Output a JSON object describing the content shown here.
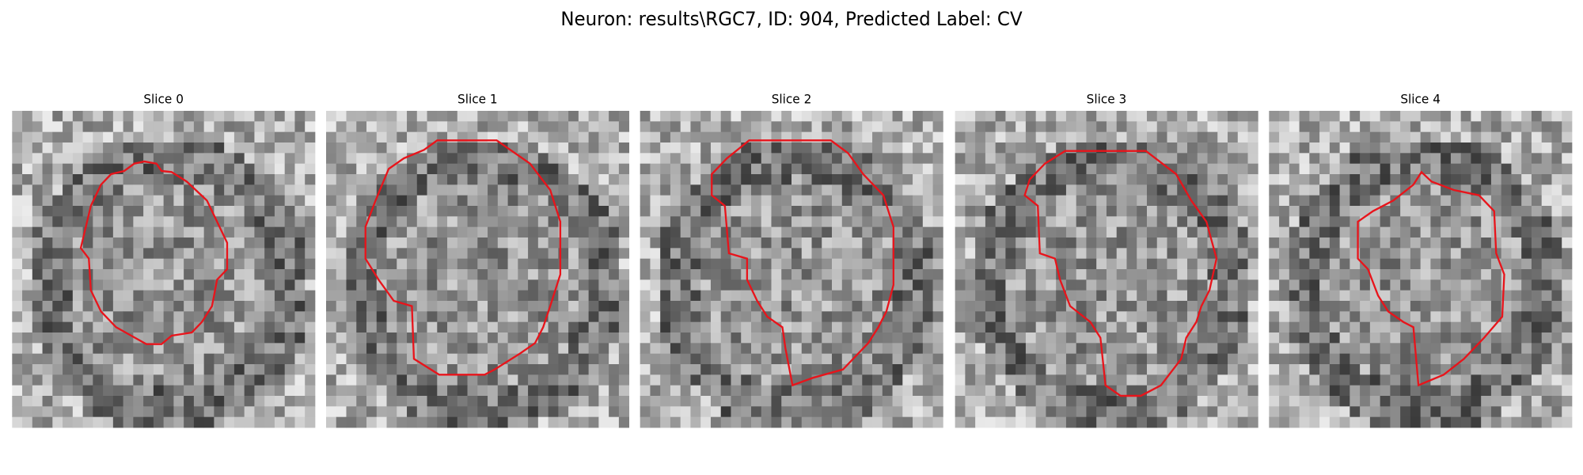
{
  "title": "Neuron: results\\RGC7, ID: 904, Predicted Label: CV",
  "panels": [
    {
      "title": "Slice 0"
    },
    {
      "title": "Slice 1"
    },
    {
      "title": "Slice 2"
    },
    {
      "title": "Slice 3"
    },
    {
      "title": "Slice 4"
    }
  ]
}
